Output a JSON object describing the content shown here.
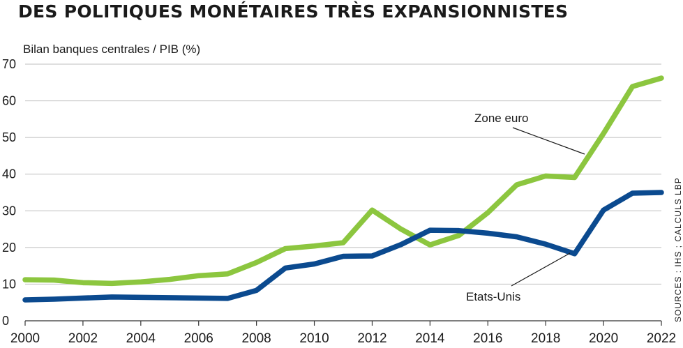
{
  "title": "DES POLITIQUES MONÉTAIRES TRÈS EXPANSIONNISTES",
  "source": "SOURCES : IHS ; CALCULS LBP",
  "colors": {
    "zone_euro": "#8cc63f",
    "etats_unis": "#0b4a8f",
    "grid": "#bfbfbf",
    "axis": "#333333"
  },
  "chart_data": {
    "type": "line",
    "title": "DES POLITIQUES MONÉTAIRES TRÈS EXPANSIONNISTES",
    "ylabel": "Bilan banques centrales / PIB (%)",
    "xlabel": "",
    "xlim": [
      2000,
      2022
    ],
    "ylim": [
      0,
      70
    ],
    "x_ticks": [
      "2000",
      "2002",
      "2004",
      "2006",
      "2008",
      "2010",
      "2012",
      "2014",
      "2016",
      "2018",
      "2020",
      "2022"
    ],
    "y_ticks": [
      "0",
      "10",
      "20",
      "30",
      "40",
      "50",
      "60",
      "70"
    ],
    "grid": true,
    "x": [
      2000,
      2001,
      2002,
      2003,
      2004,
      2005,
      2006,
      2007,
      2008,
      2009,
      2010,
      2011,
      2012,
      2013,
      2014,
      2015,
      2016,
      2017,
      2018,
      2019,
      2020,
      2021,
      2022
    ],
    "series": [
      {
        "name": "Zone euro",
        "color": "#8cc63f",
        "values": [
          11.2,
          11.1,
          10.4,
          10.2,
          10.6,
          11.3,
          12.3,
          12.8,
          15.9,
          19.7,
          20.4,
          21.3,
          30.2,
          25.0,
          20.7,
          23.3,
          29.5,
          37.1,
          39.5,
          39.1,
          51.1,
          63.9,
          66.2
        ]
      },
      {
        "name": "Etats-Unis",
        "color": "#0b4a8f",
        "values": [
          5.7,
          5.9,
          6.2,
          6.5,
          6.4,
          6.3,
          6.2,
          6.1,
          8.3,
          14.4,
          15.5,
          17.6,
          17.7,
          20.8,
          24.7,
          24.6,
          23.9,
          22.9,
          20.9,
          18.3,
          30.2,
          34.8,
          35.0
        ]
      }
    ]
  }
}
